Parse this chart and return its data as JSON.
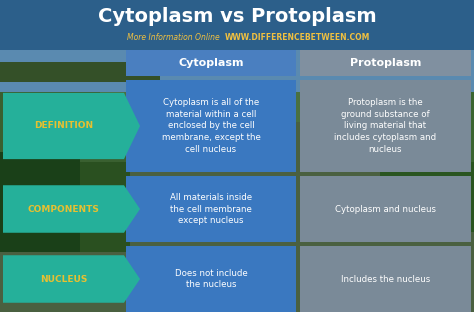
{
  "title": "Cytoplasm vs Protoplasm",
  "subtitle_left": "More Information Online",
  "subtitle_right": "WWW.DIFFERENCEBETWEEN.COM",
  "col1_header": "Cytoplasm",
  "col2_header": "Protoplasm",
  "rows": [
    {
      "label": "DEFINITION",
      "col1": "Cytoplasm is all of the\nmaterial within a cell\nenclosed by the cell\nmembrane, except the\ncell nucleus",
      "col2": "Protoplasm is the\nground substance of\nliving material that\nincludes cytoplasm and\nnucleus"
    },
    {
      "label": "COMPONENTS",
      "col1": "All materials inside\nthe cell membrane\nexcept nucleus",
      "col2": "Cytoplasm and nucleus"
    },
    {
      "label": "NUCLEUS",
      "col1": "Does not include\nthe nucleus",
      "col2": "Includes the nucleus"
    }
  ],
  "title_color": "#ffffff",
  "title_bg": "#2c5f8a",
  "subtitle_left_color": "#f0c040",
  "subtitle_right_color": "#f0c040",
  "header_bg": "#4a7fc0",
  "header2_bg": "#8090a0",
  "header_text_color": "#ffffff",
  "col1_bg": "#3a78c0",
  "col1_text_color": "#ffffff",
  "col2_bg": "#7a8a98",
  "col2_text_color": "#ffffff",
  "label_bg": "#25b09a",
  "label_text_color": "#e8c030",
  "bg_color": "#4a6040",
  "bg_color2": "#3a5030",
  "separator_color": "#8aaa88",
  "gap_color": "#5a7050"
}
